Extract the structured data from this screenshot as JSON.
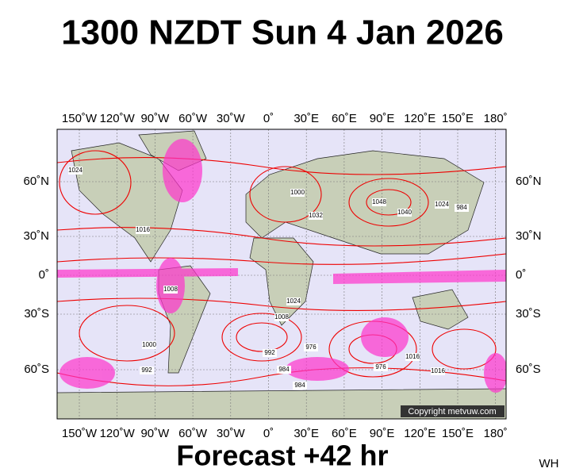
{
  "header": {
    "title": "1300 NZDT Sun 4 Jan 2026"
  },
  "map": {
    "longitude_labels": [
      "150˚W",
      "120˚W",
      "90˚W",
      "60˚W",
      "30˚W",
      "0˚",
      "30˚E",
      "60˚E",
      "90˚E",
      "120˚E",
      "150˚E",
      "180˚"
    ],
    "latitude_labels": [
      "60˚N",
      "30˚N",
      "0˚",
      "30˚S",
      "60˚S"
    ],
    "isobar_labels": [
      "1024",
      "1016",
      "1008",
      "1000",
      "1032",
      "1048",
      "1040",
      "1024",
      "984",
      "992",
      "976",
      "984",
      "1016",
      "1008",
      "1024",
      "1000",
      "992",
      "976",
      "984",
      "1016"
    ],
    "copyright": "Copyright metvuw.com"
  },
  "footer": {
    "forecast": "Forecast +42 hr",
    "code": "WH"
  }
}
